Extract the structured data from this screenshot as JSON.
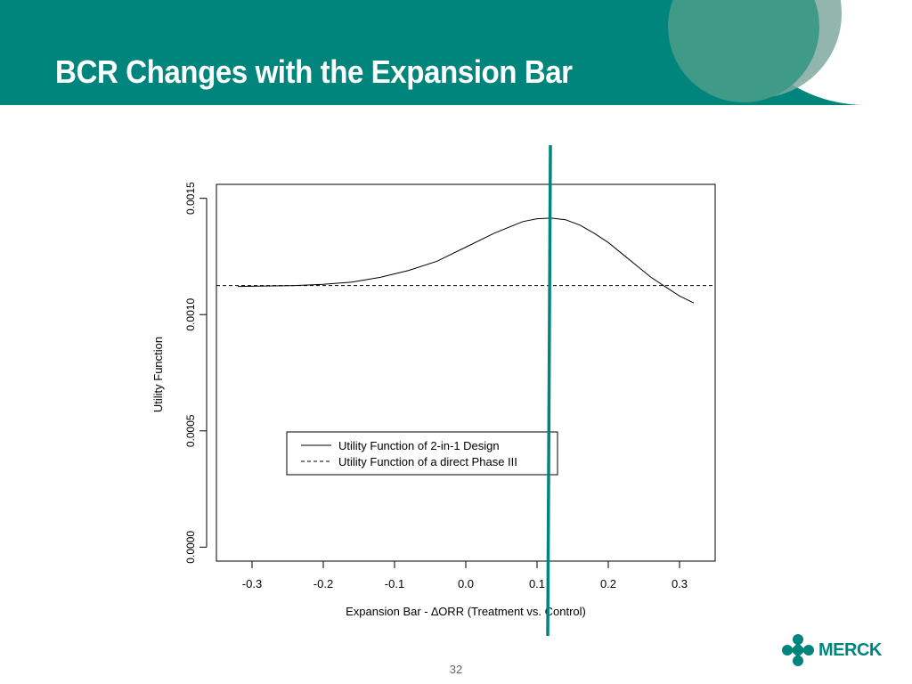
{
  "slide": {
    "title": "BCR Changes with the Expansion Bar",
    "page_number": "32",
    "logo_text": "MERCK"
  },
  "colors": {
    "header": "#00857c",
    "marker_line": "#00857c",
    "logo": "#00857c"
  },
  "chart_data": {
    "type": "line",
    "xlabel": "Expansion Bar - ∆ORR (Treatment vs. Control)",
    "ylabel": "Utility Function",
    "xlim": [
      -0.35,
      0.35
    ],
    "ylim": [
      -6e-05,
      0.00156
    ],
    "x_ticks": [
      "-0.3",
      "-0.2",
      "-0.1",
      "0.0",
      "0.1",
      "0.2",
      "0.3"
    ],
    "y_ticks": [
      "0.0000",
      "0.0005",
      "0.0010",
      "0.0015"
    ],
    "legend_position": "lower-left",
    "grid": false,
    "series": [
      {
        "name": "Utility Function of 2-in-1 Design",
        "style": "solid",
        "x": [
          -0.32,
          -0.28,
          -0.24,
          -0.2,
          -0.16,
          -0.12,
          -0.08,
          -0.04,
          0.0,
          0.04,
          0.08,
          0.1,
          0.12,
          0.14,
          0.16,
          0.18,
          0.2,
          0.22,
          0.24,
          0.26,
          0.28,
          0.3,
          0.32
        ],
        "y": [
          0.001121,
          0.001123,
          0.001125,
          0.00113,
          0.00114,
          0.00116,
          0.00119,
          0.00123,
          0.00129,
          0.00135,
          0.0014,
          0.001412,
          0.001415,
          0.001408,
          0.001385,
          0.00135,
          0.00131,
          0.00126,
          0.00121,
          0.00116,
          0.00112,
          0.00108,
          0.00105
        ]
      },
      {
        "name": "Utility Function of a direct Phase III",
        "style": "dashed",
        "x": [
          -0.35,
          0.35
        ],
        "y": [
          0.001125,
          0.001125
        ]
      }
    ],
    "annotations": [
      {
        "type": "vertical-line",
        "x": 0.118,
        "color": "#00857c"
      }
    ]
  }
}
